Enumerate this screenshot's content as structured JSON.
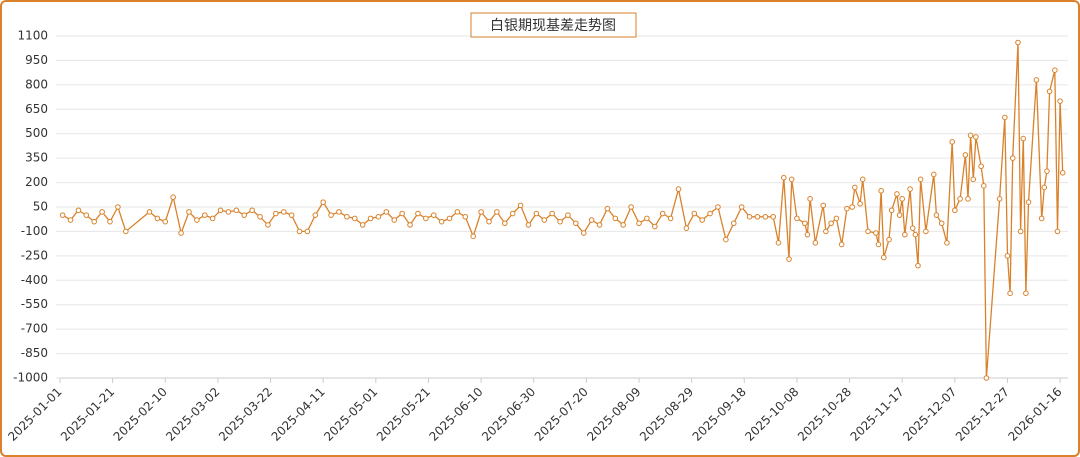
{
  "chart_data": {
    "type": "line",
    "title": "白银期现基差走势图",
    "color": "#d9822b",
    "grid": true,
    "ylim": [
      -1000,
      1100
    ],
    "yticks": [
      -1000,
      -850,
      -700,
      -550,
      -400,
      -250,
      -100,
      50,
      200,
      350,
      500,
      650,
      800,
      950,
      1100
    ],
    "xlim": [
      "2025-01-01",
      "2026-01-19"
    ],
    "xticks": [
      "2025-01-01",
      "2025-01-21",
      "2025-02-10",
      "2025-03-02",
      "2025-03-22",
      "2025-04-11",
      "2025-05-01",
      "2025-05-21",
      "2025-06-10",
      "2025-06-30",
      "2025-07-20",
      "2025-08-09",
      "2025-08-29",
      "2025-09-18",
      "2025-10-08",
      "2025-10-28",
      "2025-11-17",
      "2025-12-07",
      "2025-12-27",
      "2026-01-16"
    ],
    "x": [
      "2025-01-02",
      "2025-01-05",
      "2025-01-08",
      "2025-01-11",
      "2025-01-14",
      "2025-01-17",
      "2025-01-20",
      "2025-01-23",
      "2025-01-26",
      "2025-02-04",
      "2025-02-07",
      "2025-02-10",
      "2025-02-13",
      "2025-02-16",
      "2025-02-19",
      "2025-02-22",
      "2025-02-25",
      "2025-02-28",
      "2025-03-03",
      "2025-03-06",
      "2025-03-09",
      "2025-03-12",
      "2025-03-15",
      "2025-03-18",
      "2025-03-21",
      "2025-03-24",
      "2025-03-27",
      "2025-03-30",
      "2025-04-02",
      "2025-04-05",
      "2025-04-08",
      "2025-04-11",
      "2025-04-14",
      "2025-04-17",
      "2025-04-20",
      "2025-04-23",
      "2025-04-26",
      "2025-04-29",
      "2025-05-02",
      "2025-05-05",
      "2025-05-08",
      "2025-05-11",
      "2025-05-14",
      "2025-05-17",
      "2025-05-20",
      "2025-05-23",
      "2025-05-26",
      "2025-05-29",
      "2025-06-01",
      "2025-06-04",
      "2025-06-07",
      "2025-06-10",
      "2025-06-13",
      "2025-06-16",
      "2025-06-19",
      "2025-06-22",
      "2025-06-25",
      "2025-06-28",
      "2025-07-01",
      "2025-07-04",
      "2025-07-07",
      "2025-07-10",
      "2025-07-13",
      "2025-07-16",
      "2025-07-19",
      "2025-07-22",
      "2025-07-25",
      "2025-07-28",
      "2025-07-31",
      "2025-08-03",
      "2025-08-06",
      "2025-08-09",
      "2025-08-12",
      "2025-08-15",
      "2025-08-18",
      "2025-08-21",
      "2025-08-24",
      "2025-08-27",
      "2025-08-30",
      "2025-09-02",
      "2025-09-05",
      "2025-09-08",
      "2025-09-11",
      "2025-09-14",
      "2025-09-17",
      "2025-09-20",
      "2025-09-23",
      "2025-09-26",
      "2025-09-29",
      "2025-10-01",
      "2025-10-03",
      "2025-10-05",
      "2025-10-06",
      "2025-10-08",
      "2025-10-11",
      "2025-10-12",
      "2025-10-13",
      "2025-10-15",
      "2025-10-18",
      "2025-10-19",
      "2025-10-21",
      "2025-10-23",
      "2025-10-25",
      "2025-10-27",
      "2025-10-29",
      "2025-10-30",
      "2025-11-01",
      "2025-11-02",
      "2025-11-04",
      "2025-11-07",
      "2025-11-08",
      "2025-11-09",
      "2025-11-10",
      "2025-11-12",
      "2025-11-13",
      "2025-11-15",
      "2025-11-16",
      "2025-11-17",
      "2025-11-18",
      "2025-11-20",
      "2025-11-21",
      "2025-11-22",
      "2025-11-23",
      "2025-11-24",
      "2025-11-26",
      "2025-11-29",
      "2025-11-30",
      "2025-12-02",
      "2025-12-04",
      "2025-12-06",
      "2025-12-07",
      "2025-12-09",
      "2025-12-11",
      "2025-12-12",
      "2025-12-13",
      "2025-12-14",
      "2025-12-15",
      "2025-12-17",
      "2025-12-18",
      "2025-12-19",
      "2025-12-24",
      "2025-12-26",
      "2025-12-27",
      "2025-12-28",
      "2025-12-29",
      "2025-12-31",
      "2026-01-01",
      "2026-01-02",
      "2026-01-03",
      "2026-01-04",
      "2026-01-07",
      "2026-01-09",
      "2026-01-10",
      "2026-01-11",
      "2026-01-12",
      "2026-01-14",
      "2026-01-15",
      "2026-01-16",
      "2026-01-17"
    ],
    "values": [
      0,
      -30,
      30,
      0,
      -40,
      20,
      -40,
      50,
      -100,
      20,
      -20,
      -40,
      110,
      -110,
      20,
      -30,
      0,
      -20,
      30,
      20,
      30,
      0,
      30,
      -10,
      -60,
      10,
      20,
      0,
      -100,
      -100,
      0,
      80,
      0,
      20,
      -10,
      -20,
      -60,
      -20,
      -10,
      20,
      -30,
      10,
      -60,
      10,
      -20,
      0,
      -40,
      -20,
      20,
      -10,
      -130,
      20,
      -40,
      20,
      -50,
      10,
      60,
      -60,
      10,
      -30,
      10,
      -40,
      0,
      -50,
      -110,
      -30,
      -60,
      40,
      -20,
      -60,
      50,
      -50,
      -20,
      -70,
      10,
      -20,
      160,
      -80,
      10,
      -30,
      10,
      50,
      -150,
      -50,
      50,
      -10,
      -10,
      -10,
      -10,
      -170,
      230,
      -270,
      220,
      -20,
      -50,
      -120,
      100,
      -170,
      60,
      -100,
      -50,
      -20,
      -180,
      40,
      50,
      170,
      70,
      220,
      -100,
      -110,
      -180,
      150,
      -260,
      -150,
      30,
      130,
      0,
      100,
      -120,
      160,
      -80,
      -120,
      -310,
      220,
      -100,
      250,
      0,
      -50,
      -170,
      450,
      30,
      100,
      370,
      100,
      490,
      220,
      480,
      300,
      180,
      -1000,
      100,
      600,
      -250,
      -480,
      350,
      1060,
      -100,
      470,
      -480,
      80,
      830,
      -20,
      170,
      270,
      760,
      890,
      -100,
      700,
      260
    ]
  }
}
